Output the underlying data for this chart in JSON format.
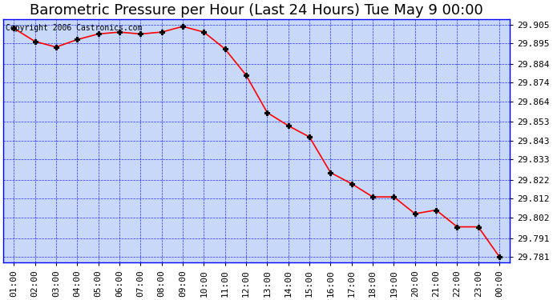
{
  "title": "Barometric Pressure per Hour (Last 24 Hours) Tue May 9 00:00",
  "copyright": "Copyright 2006 Castronics.com",
  "x_labels": [
    "01:00",
    "02:00",
    "03:00",
    "04:00",
    "05:00",
    "06:00",
    "07:00",
    "08:00",
    "09:00",
    "10:00",
    "11:00",
    "12:00",
    "13:00",
    "14:00",
    "15:00",
    "16:00",
    "17:00",
    "18:00",
    "19:00",
    "20:00",
    "21:00",
    "22:00",
    "23:00",
    "00:00"
  ],
  "y_values": [
    29.903,
    29.896,
    29.893,
    29.897,
    29.9,
    29.901,
    29.9,
    29.901,
    29.904,
    29.901,
    29.892,
    29.878,
    29.858,
    29.851,
    29.845,
    29.826,
    29.82,
    29.813,
    29.813,
    29.804,
    29.806,
    29.797,
    29.797,
    29.781
  ],
  "ylim_min": 29.778,
  "ylim_max": 29.908,
  "yticks": [
    29.781,
    29.791,
    29.802,
    29.812,
    29.822,
    29.833,
    29.843,
    29.853,
    29.864,
    29.874,
    29.884,
    29.895,
    29.905
  ],
  "line_color": "red",
  "marker_color": "black",
  "bg_color": "#c8d8f8",
  "grid_color": "blue",
  "border_color": "blue",
  "title_fontsize": 13,
  "tick_fontsize": 8,
  "copyright_fontsize": 7
}
